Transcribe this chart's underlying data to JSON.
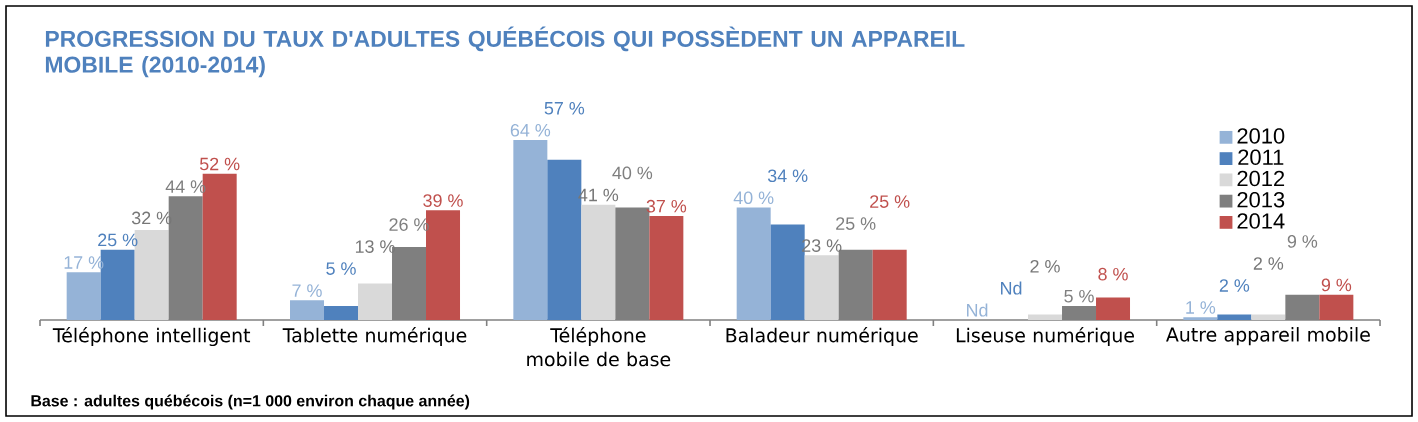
{
  "chart_data": {
    "type": "bar",
    "title": "PROGRESSION DU TAUX D'ADULTES QUÉBÉCOIS QUI POSSÈDENT UN APPAREIL MOBILE (2010-2014)",
    "categories": [
      "Téléphone intelligent",
      "Tablette numérique",
      "Téléphone mobile de base",
      "Baladeur numérique",
      "Liseuse numérique",
      "Autre appareil mobile"
    ],
    "tick_labels": "x",
    "legend": "top right",
    "series": [
      {
        "name": "2010",
        "color": "#95b3d7",
        "values": [
          17,
          7,
          64,
          40,
          null,
          1
        ],
        "value_labels": [
          "17 %",
          "7 %",
          "64 %",
          "40 %",
          "Nd",
          "1 %"
        ]
      },
      {
        "name": "2011",
        "color": "#4f81bd",
        "values": [
          25,
          5,
          57,
          34,
          null,
          2
        ],
        "value_labels": [
          "25 %",
          "5 %",
          "57 %",
          "34 %",
          "Nd",
          "2 %"
        ]
      },
      {
        "name": "2012",
        "color": "#d9d9d9",
        "values": [
          32,
          13,
          41,
          23,
          2,
          2
        ],
        "value_labels": [
          "32 %",
          "13 %",
          "41 %",
          "23 %",
          "2 %",
          "2 %"
        ]
      },
      {
        "name": "2013",
        "color": "#7f7f7f",
        "values": [
          44,
          26,
          40,
          25,
          5,
          9
        ],
        "value_labels": [
          "44 %",
          "26 %",
          "40 %",
          "25 %",
          "5 %",
          "9 %"
        ]
      },
      {
        "name": "2014",
        "color": "#c0504d",
        "values": [
          52,
          39,
          37,
          25,
          8,
          9
        ],
        "value_labels": [
          "52 %",
          "39 %",
          "37 %",
          "25 %",
          "8 %",
          "9 %"
        ]
      }
    ],
    "annotations": [
      "Base : adultes québécois (n=1 000 environ chaque année)"
    ]
  }
}
